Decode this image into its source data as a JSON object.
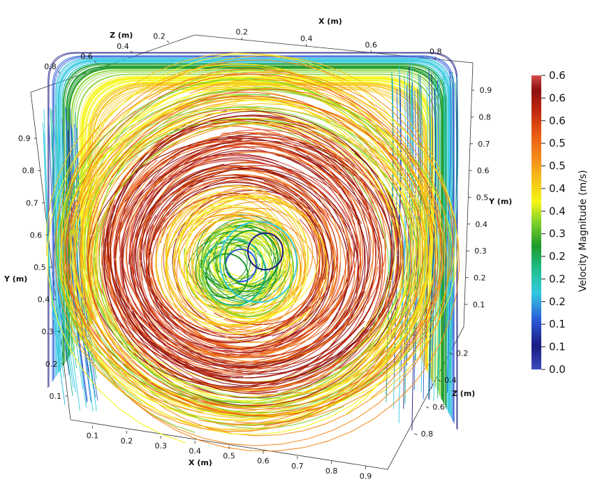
{
  "chart_data": {
    "type": "streamlines-3d",
    "x_axis": {
      "title": "X (m)",
      "ticks_front": [
        "0.1",
        "0.2",
        "0.3",
        "0.4",
        "0.5",
        "0.6",
        "0.7",
        "0.8",
        "0.9"
      ],
      "ticks_back": [
        "0.2",
        "0.4",
        "0.6",
        "0.8"
      ]
    },
    "y_axis": {
      "title": "Y (m)",
      "ticks_left": [
        "0.1",
        "0.2",
        "0.3",
        "0.4",
        "0.5",
        "0.6",
        "0.7",
        "0.8",
        "0.9"
      ],
      "ticks_right": [
        "0.1",
        "0.2",
        "0.3",
        "0.4",
        "0.5",
        "0.6",
        "0.7",
        "0.8",
        "0.9"
      ]
    },
    "z_axis": {
      "title": "Z (m)",
      "ticks_top": [
        "0.2",
        "0.4",
        "0.6",
        "0.8"
      ],
      "ticks_right": [
        "0.2",
        "0.4",
        "0.6",
        "0.8"
      ]
    },
    "colorbar": {
      "title": "Velocity Magnitude (m/s)",
      "labels": [
        "0.6",
        "0.6",
        "0.6",
        "0.5",
        "0.5",
        "0.4",
        "0.4",
        "0.3",
        "0.2",
        "0.2",
        "0.2",
        "0.1",
        "0.1",
        "0.0"
      ],
      "range": [
        0.0,
        0.6
      ],
      "colormap": [
        "#3b4cc0",
        "#1a1a80",
        "#2a5bd7",
        "#33c8e0",
        "#1fbf8f",
        "#1d9a2a",
        "#7fd12a",
        "#f5f516",
        "#f5c518",
        "#f58a1a",
        "#e85a12",
        "#c0280f",
        "#8b0f0f",
        "#d44a4a"
      ]
    },
    "vortex_center": {
      "x": 0.5,
      "y": 0.5
    },
    "grid": false
  }
}
